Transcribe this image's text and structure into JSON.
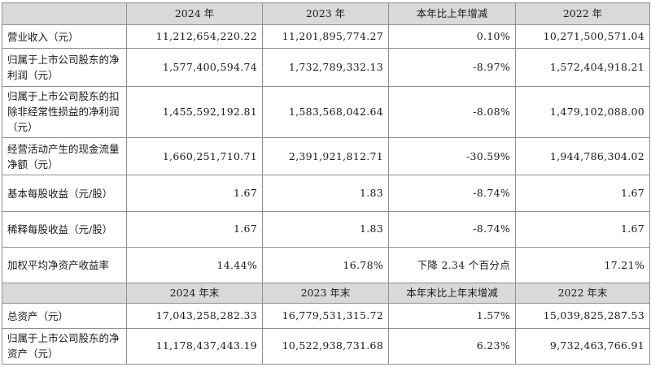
{
  "header1": [
    "",
    "2024 年",
    "2023 年",
    "本年比上年增减",
    "2022 年"
  ],
  "rows1": [
    {
      "label": "营业收入（元）",
      "v2024": "11,212,654,220.22",
      "v2023": "11,201,895,774.27",
      "change": "0.10%",
      "v2022": "10,271,500,571.04"
    },
    {
      "label": "归属于上市公司股东的净利润（元）",
      "v2024": "1,577,400,594.74",
      "v2023": "1,732,789,332.13",
      "change": "-8.97%",
      "v2022": "1,572,404,918.21"
    },
    {
      "label": "归属于上市公司股东的扣除非经常性损益的净利润（元）",
      "v2024": "1,455,592,192.81",
      "v2023": "1,583,568,042.64",
      "change": "-8.08%",
      "v2022": "1,479,102,088.00"
    },
    {
      "label": "经营活动产生的现金流量净额（元）",
      "v2024": "1,660,251,710.71",
      "v2023": "2,391,921,812.71",
      "change": "-30.59%",
      "v2022": "1,944,786,304.02"
    },
    {
      "label": "基本每股收益（元/股）",
      "v2024": "1.67",
      "v2023": "1.83",
      "change": "-8.74%",
      "v2022": "1.67"
    },
    {
      "label": "稀释每股收益（元/股）",
      "v2024": "1.67",
      "v2023": "1.83",
      "change": "-8.74%",
      "v2022": "1.67"
    },
    {
      "label": "加权平均净资产收益率",
      "v2024": "14.44%",
      "v2023": "16.78%",
      "change": "下降 2.34 个百分点",
      "v2022": "17.21%"
    }
  ],
  "header2": [
    "",
    "2024 年末",
    "2023 年末",
    "本年末比上年末增减",
    "2022 年末"
  ],
  "rows2": [
    {
      "label": "总资产（元）",
      "v2024": "17,043,258,282.33",
      "v2023": "16,779,531,315.72",
      "change": "1.57%",
      "v2022": "15,039,825,287.53"
    },
    {
      "label": "归属于上市公司股东的净资产（元）",
      "v2024": "11,178,437,443.19",
      "v2023": "10,522,938,731.68",
      "change": "6.23%",
      "v2022": "9,732,463,766.91"
    }
  ]
}
